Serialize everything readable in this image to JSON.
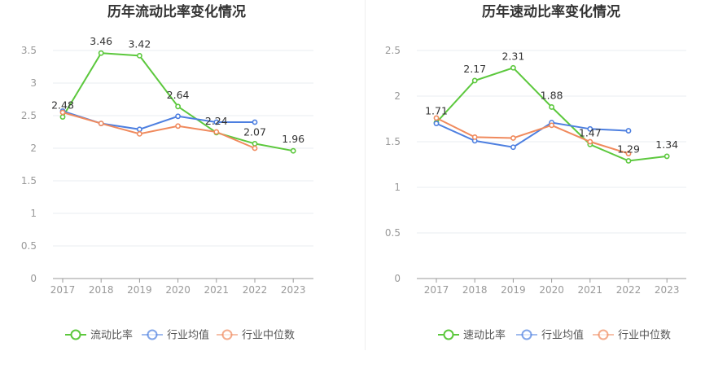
{
  "chart_data": [
    {
      "type": "line",
      "title": "历年流动比率变化情况",
      "categories": [
        "2017",
        "2018",
        "2019",
        "2020",
        "2021",
        "2022",
        "2023"
      ],
      "ylim": [
        0,
        3.5
      ],
      "yticks": [
        "0",
        "0.5",
        "1",
        "1.5",
        "2",
        "2.5",
        "3",
        "3.5"
      ],
      "grid": true,
      "legend_position": "bottom",
      "series": [
        {
          "name": "流动比率",
          "color": "#5cc83d",
          "values": [
            2.48,
            3.46,
            3.42,
            2.64,
            2.24,
            2.07,
            1.96
          ],
          "labels": [
            "2.48",
            "3.46",
            "3.42",
            "2.64",
            "2.24",
            "2.07",
            "1.96"
          ]
        },
        {
          "name": "行业均值",
          "color": "#4d7fe0",
          "values": [
            2.57,
            2.38,
            2.29,
            2.49,
            2.4,
            2.4,
            null
          ]
        },
        {
          "name": "行业中位数",
          "color": "#f08a5d",
          "values": [
            2.55,
            2.38,
            2.22,
            2.34,
            2.25,
            2.0,
            null
          ]
        }
      ]
    },
    {
      "type": "line",
      "title": "历年速动比率变化情况",
      "categories": [
        "2017",
        "2018",
        "2019",
        "2020",
        "2021",
        "2022",
        "2023"
      ],
      "ylim": [
        0,
        2.5
      ],
      "yticks": [
        "0",
        "0.5",
        "1",
        "1.5",
        "2",
        "2.5"
      ],
      "grid": true,
      "legend_position": "bottom",
      "series": [
        {
          "name": "速动比率",
          "color": "#5cc83d",
          "values": [
            1.71,
            2.17,
            2.31,
            1.88,
            1.47,
            1.29,
            1.34
          ],
          "labels": [
            "1.71",
            "2.17",
            "2.31",
            "1.88",
            "1.47",
            "1.29",
            "1.34"
          ]
        },
        {
          "name": "行业均值",
          "color": "#4d7fe0",
          "values": [
            1.7,
            1.51,
            1.44,
            1.71,
            1.64,
            1.62,
            null
          ]
        },
        {
          "name": "行业中位数",
          "color": "#f08a5d",
          "values": [
            1.76,
            1.55,
            1.54,
            1.68,
            1.5,
            1.37,
            null
          ]
        }
      ]
    }
  ]
}
